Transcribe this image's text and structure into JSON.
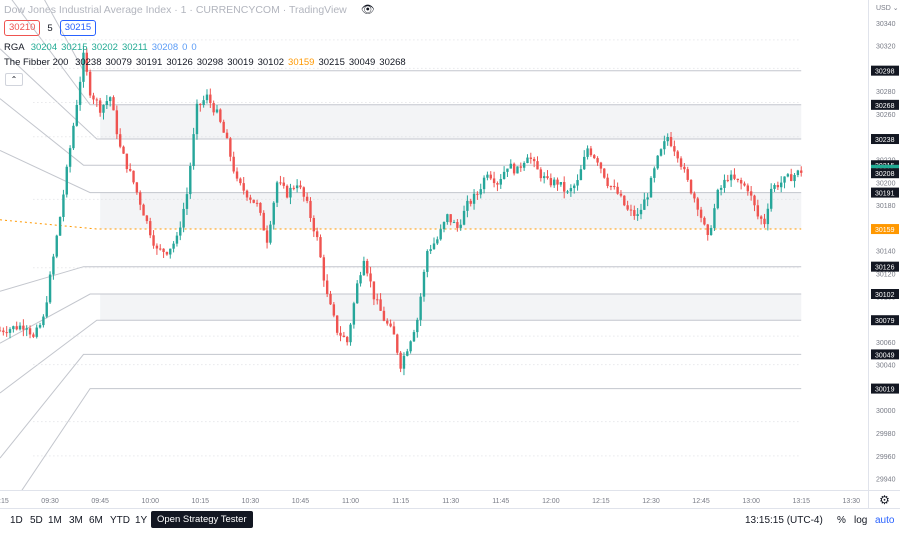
{
  "header": {
    "title": "Dow Jones Industrial Average Index · 1 · CURRENCYCOM · TradingView",
    "sell_price": "30210",
    "spread": "5",
    "buy_price": "30215"
  },
  "indicators": {
    "rga": {
      "name": "RGA",
      "values": [
        "30204",
        "30215",
        "30202",
        "30211",
        "30208",
        "0",
        "0"
      ]
    },
    "fibber": {
      "name": "The Fibber 200",
      "values": [
        "30238",
        "30079",
        "30191",
        "30126",
        "30298",
        "30019",
        "30102",
        "30159",
        "30215",
        "30049",
        "30268"
      ]
    }
  },
  "colors": {
    "up": "#26a69a",
    "down": "#ef5350",
    "up_light": "#8fd3b8",
    "down_light": "#f0a3a1",
    "rga_green": "#22ab94",
    "rga_blue": "#5b9cf6",
    "orange": "#ff9800",
    "band_fill": "#f3f4f6",
    "level_line": "#c3c6cd",
    "dash_line": "#dcdde1",
    "label_dark": "#131722",
    "label_green": "#22ab94",
    "label_orange": "#ff9800",
    "label_scale": "#787b86"
  },
  "chart_data": {
    "type": "candlestick",
    "symbol": "Dow Jones Industrial Average Index",
    "timeframe": "1",
    "exchange": "CURRENCYCOM",
    "currency": "USD",
    "ylim": [
      29930,
      30360
    ],
    "y_ticks": [
      29940,
      29960,
      29980,
      30000,
      30040,
      30060,
      30100,
      30120,
      30140,
      30160,
      30180,
      30200,
      30220,
      30240,
      30260,
      30280,
      30300,
      30320,
      30340
    ],
    "x_range": [
      "09:15",
      "13:35"
    ],
    "x_ticks": [
      "09:15",
      "09:30",
      "09:45",
      "10:00",
      "10:15",
      "10:30",
      "10:45",
      "11:00",
      "11:15",
      "11:30",
      "11:45",
      "12:00",
      "12:15",
      "12:30",
      "12:45",
      "13:00",
      "13:15",
      "13:30"
    ],
    "path_keypoints": [
      [
        "09:15",
        30070
      ],
      [
        "09:23",
        30075
      ],
      [
        "09:25",
        30063
      ],
      [
        "09:28",
        30080
      ],
      [
        "09:33",
        30170
      ],
      [
        "09:37",
        30250
      ],
      [
        "09:40",
        30310
      ],
      [
        "09:42",
        30280
      ],
      [
        "09:45",
        30265
      ],
      [
        "09:48",
        30275
      ],
      [
        "09:51",
        30230
      ],
      [
        "09:55",
        30200
      ],
      [
        "09:59",
        30165
      ],
      [
        "10:02",
        30140
      ],
      [
        "10:05",
        30140
      ],
      [
        "10:08",
        30150
      ],
      [
        "10:11",
        30190
      ],
      [
        "10:14",
        30265
      ],
      [
        "10:17",
        30275
      ],
      [
        "10:20",
        30260
      ],
      [
        "10:23",
        30235
      ],
      [
        "10:26",
        30200
      ],
      [
        "10:29",
        30190
      ],
      [
        "10:32",
        30180
      ],
      [
        "10:35",
        30150
      ],
      [
        "10:38",
        30200
      ],
      [
        "10:41",
        30190
      ],
      [
        "10:44",
        30200
      ],
      [
        "10:47",
        30180
      ],
      [
        "10:50",
        30150
      ],
      [
        "10:53",
        30100
      ],
      [
        "10:56",
        30070
      ],
      [
        "10:59",
        30060
      ],
      [
        "11:02",
        30110
      ],
      [
        "11:04",
        30135
      ],
      [
        "11:07",
        30100
      ],
      [
        "11:10",
        30080
      ],
      [
        "11:13",
        30065
      ],
      [
        "11:15",
        30040
      ],
      [
        "11:17",
        30055
      ],
      [
        "11:20",
        30080
      ],
      [
        "11:23",
        30140
      ],
      [
        "11:26",
        30150
      ],
      [
        "11:29",
        30170
      ],
      [
        "11:32",
        30160
      ],
      [
        "11:35",
        30180
      ],
      [
        "11:38",
        30190
      ],
      [
        "11:41",
        30210
      ],
      [
        "11:44",
        30200
      ],
      [
        "11:47",
        30215
      ],
      [
        "11:50",
        30210
      ],
      [
        "11:53",
        30225
      ],
      [
        "11:56",
        30210
      ],
      [
        "11:59",
        30200
      ],
      [
        "12:02",
        30200
      ],
      [
        "12:05",
        30190
      ],
      [
        "12:08",
        30200
      ],
      [
        "12:11",
        30230
      ],
      [
        "12:14",
        30220
      ],
      [
        "12:17",
        30200
      ],
      [
        "12:20",
        30190
      ],
      [
        "12:23",
        30175
      ],
      [
        "12:26",
        30170
      ],
      [
        "12:29",
        30190
      ],
      [
        "12:32",
        30220
      ],
      [
        "12:35",
        30240
      ],
      [
        "12:38",
        30225
      ],
      [
        "12:41",
        30200
      ],
      [
        "12:44",
        30180
      ],
      [
        "12:47",
        30150
      ],
      [
        "12:50",
        30190
      ],
      [
        "12:53",
        30205
      ],
      [
        "12:56",
        30200
      ],
      [
        "12:59",
        30195
      ],
      [
        "13:02",
        30170
      ],
      [
        "13:04",
        30165
      ],
      [
        "13:06",
        30195
      ],
      [
        "13:09",
        30200
      ],
      [
        "13:12",
        30205
      ],
      [
        "13:15",
        30210
      ]
    ],
    "fib_levels": [
      {
        "value": 30298,
        "label": "30298",
        "style": "solid"
      },
      {
        "value": 30268,
        "label": "30268",
        "style": "solid"
      },
      {
        "value": 30238,
        "label": "30238",
        "style": "solid"
      },
      {
        "value": 30215,
        "label": "30215",
        "style": "solid"
      },
      {
        "value": 30191,
        "label": "30191",
        "style": "solid"
      },
      {
        "value": 30159,
        "label": "30159",
        "style": "orange-dashed"
      },
      {
        "value": 30126,
        "label": "30126",
        "style": "solid"
      },
      {
        "value": 30102,
        "label": "30102",
        "style": "solid"
      },
      {
        "value": 30079,
        "label": "30079",
        "style": "solid"
      },
      {
        "value": 30049,
        "label": "30049",
        "style": "solid"
      },
      {
        "value": 30019,
        "label": "30019",
        "style": "solid"
      }
    ],
    "dashed_bands": [
      30325,
      30300,
      30270,
      30240,
      30185,
      30125,
      30065,
      30040,
      29990,
      29960
    ],
    "price_labels": [
      {
        "value": 30211,
        "label": "30211",
        "kind": "current"
      },
      {
        "value": 30208,
        "label": "30208",
        "kind": "blue"
      }
    ],
    "y_axis_unit": "USD"
  },
  "bottom_bar": {
    "timeframes": [
      "1D",
      "5D",
      "1M",
      "3M",
      "6M",
      "YTD",
      "1Y"
    ],
    "strategy_tester": "Open Strategy Tester",
    "clock": "13:15:15 (UTC-4)",
    "percent": "%",
    "log": "log",
    "auto": "auto"
  }
}
